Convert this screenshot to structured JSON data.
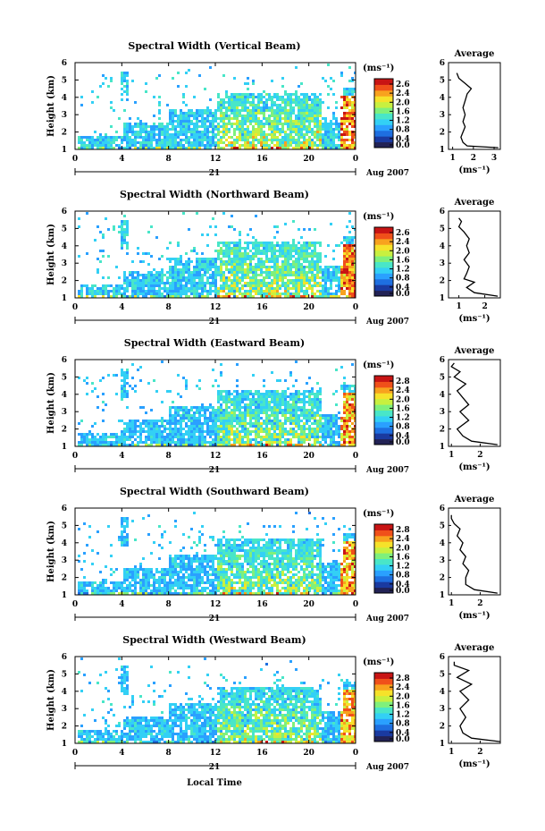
{
  "figure": {
    "xlabel": "Local Time",
    "date_label": "Aug 2007",
    "day_label": "21"
  },
  "colorbar": {
    "unit": "(ms⁻¹)",
    "colors": [
      "#222255",
      "#1a3aa0",
      "#1e6fe0",
      "#2aa0ff",
      "#33d0f5",
      "#49e6c8",
      "#7ff07c",
      "#c8f040",
      "#f6e22a",
      "#f8a21e",
      "#f0501a",
      "#c81414"
    ]
  },
  "chart_data": [
    {
      "type": "heatmap",
      "title": "Spectral Width (Vertical Beam)",
      "ylabel": "Height (km)",
      "x_ticks": [
        "0",
        "4",
        "8",
        "12",
        "16",
        "20",
        "0"
      ],
      "xlim": [
        0,
        24
      ],
      "y_ticks": [
        "1",
        "2",
        "3",
        "4",
        "5",
        "6"
      ],
      "ylim": [
        1,
        6
      ],
      "colorbar_ticks": [
        "2.6",
        "2.4",
        "2.0",
        "1.6",
        "1.2",
        "0.8",
        "0.4",
        "0.0"
      ],
      "colorbar_range": [
        0,
        2.8
      ],
      "profile": {
        "title": "Average",
        "xlabel": "(ms⁻¹)",
        "x_ticks": [
          "1",
          "2",
          "3"
        ],
        "xlim": [
          0.8,
          3.3
        ],
        "heights": [
          1.1,
          1.2,
          1.4,
          1.7,
          2.0,
          2.3,
          2.6,
          3.0,
          3.4,
          3.8,
          4.2,
          4.5,
          4.8,
          5.1,
          5.4
        ],
        "widths": [
          3.2,
          1.7,
          1.5,
          1.4,
          1.5,
          1.6,
          1.5,
          1.6,
          1.5,
          1.6,
          1.7,
          1.9,
          1.6,
          1.3,
          1.2
        ]
      }
    },
    {
      "type": "heatmap",
      "title": "Spectral Width (Northward Beam)",
      "ylabel": "Height (km)",
      "x_ticks": [
        "0",
        "4",
        "8",
        "12",
        "16",
        "20",
        "0"
      ],
      "xlim": [
        0,
        24
      ],
      "y_ticks": [
        "1",
        "2",
        "3",
        "4",
        "5",
        "6"
      ],
      "ylim": [
        1,
        6
      ],
      "colorbar_ticks": [
        "2.6",
        "2.4",
        "2.0",
        "1.6",
        "1.2",
        "0.8",
        "0.4",
        "0.0"
      ],
      "colorbar_range": [
        0,
        2.8
      ],
      "profile": {
        "title": "Average",
        "xlabel": "(ms⁻¹)",
        "x_ticks": [
          "1",
          "2"
        ],
        "xlim": [
          0.6,
          2.6
        ],
        "heights": [
          1.1,
          1.3,
          1.6,
          1.9,
          2.1,
          2.4,
          2.8,
          3.2,
          3.6,
          4.0,
          4.4,
          4.8,
          5.1,
          5.4,
          5.6
        ],
        "widths": [
          2.5,
          1.6,
          1.3,
          1.6,
          1.2,
          1.3,
          1.4,
          1.2,
          1.4,
          1.3,
          1.4,
          1.2,
          1.0,
          1.1,
          1.0
        ]
      }
    },
    {
      "type": "heatmap",
      "title": "Spectral Width (Eastward Beam)",
      "ylabel": "Height (km)",
      "x_ticks": [
        "0",
        "4",
        "8",
        "12",
        "16",
        "20",
        "0"
      ],
      "xlim": [
        0,
        24
      ],
      "y_ticks": [
        "1",
        "2",
        "3",
        "4",
        "5",
        "6"
      ],
      "ylim": [
        1,
        6
      ],
      "colorbar_ticks": [
        "2.8",
        "2.4",
        "2.0",
        "1.6",
        "1.2",
        "0.8",
        "0.4",
        "0.0"
      ],
      "colorbar_range": [
        0,
        3.0
      ],
      "profile": {
        "title": "Average",
        "xlabel": "(ms⁻¹)",
        "x_ticks": [
          "1",
          "2"
        ],
        "xlim": [
          0.9,
          2.7
        ],
        "heights": [
          1.1,
          1.3,
          1.6,
          2.0,
          2.5,
          3.0,
          3.4,
          3.8,
          4.2,
          4.6,
          5.0,
          5.3,
          5.6,
          5.8
        ],
        "widths": [
          2.6,
          1.7,
          1.4,
          1.2,
          1.6,
          1.3,
          1.6,
          1.4,
          1.2,
          1.5,
          1.1,
          1.3,
          1.0,
          1.1
        ]
      }
    },
    {
      "type": "heatmap",
      "title": "Spectral Width (Southward Beam)",
      "ylabel": "Height (km)",
      "x_ticks": [
        "0",
        "4",
        "8",
        "12",
        "16",
        "20",
        "0"
      ],
      "xlim": [
        0,
        24
      ],
      "y_ticks": [
        "1",
        "2",
        "3",
        "4",
        "5",
        "6"
      ],
      "ylim": [
        1,
        6
      ],
      "colorbar_ticks": [
        "2.8",
        "2.4",
        "2.0",
        "1.6",
        "1.2",
        "0.8",
        "0.4",
        "0.0"
      ],
      "colorbar_range": [
        0,
        3.0
      ],
      "profile": {
        "title": "Average",
        "xlabel": "(ms⁻¹)",
        "x_ticks": [
          "1",
          "2"
        ],
        "xlim": [
          0.9,
          2.7
        ],
        "heights": [
          1.1,
          1.3,
          1.6,
          2.0,
          2.4,
          2.8,
          3.2,
          3.6,
          4.0,
          4.4,
          4.8,
          5.1,
          5.4,
          5.6
        ],
        "widths": [
          2.6,
          1.8,
          1.5,
          1.5,
          1.6,
          1.4,
          1.5,
          1.3,
          1.4,
          1.2,
          1.3,
          1.1,
          1.0,
          1.0
        ]
      }
    },
    {
      "type": "heatmap",
      "title": "Spectral Width (Westward Beam)",
      "ylabel": "Height (km)",
      "x_ticks": [
        "0",
        "4",
        "8",
        "12",
        "16",
        "20",
        "0"
      ],
      "xlim": [
        0,
        24
      ],
      "y_ticks": [
        "1",
        "2",
        "3",
        "4",
        "5",
        "6"
      ],
      "ylim": [
        1,
        6
      ],
      "colorbar_ticks": [
        "2.8",
        "2.4",
        "2.0",
        "1.6",
        "1.2",
        "0.8",
        "0.4",
        "0.0"
      ],
      "colorbar_range": [
        0,
        3.0
      ],
      "profile": {
        "title": "Average",
        "xlabel": "(ms⁻¹)",
        "x_ticks": [
          "1",
          "2"
        ],
        "xlim": [
          0.9,
          2.7
        ],
        "heights": [
          1.1,
          1.3,
          1.6,
          2.0,
          2.5,
          3.0,
          3.5,
          4.0,
          4.4,
          4.8,
          5.2,
          5.5,
          5.7
        ],
        "widths": [
          2.7,
          1.7,
          1.4,
          1.3,
          1.5,
          1.3,
          1.6,
          1.3,
          1.7,
          1.2,
          1.6,
          1.1,
          1.1
        ]
      }
    }
  ]
}
